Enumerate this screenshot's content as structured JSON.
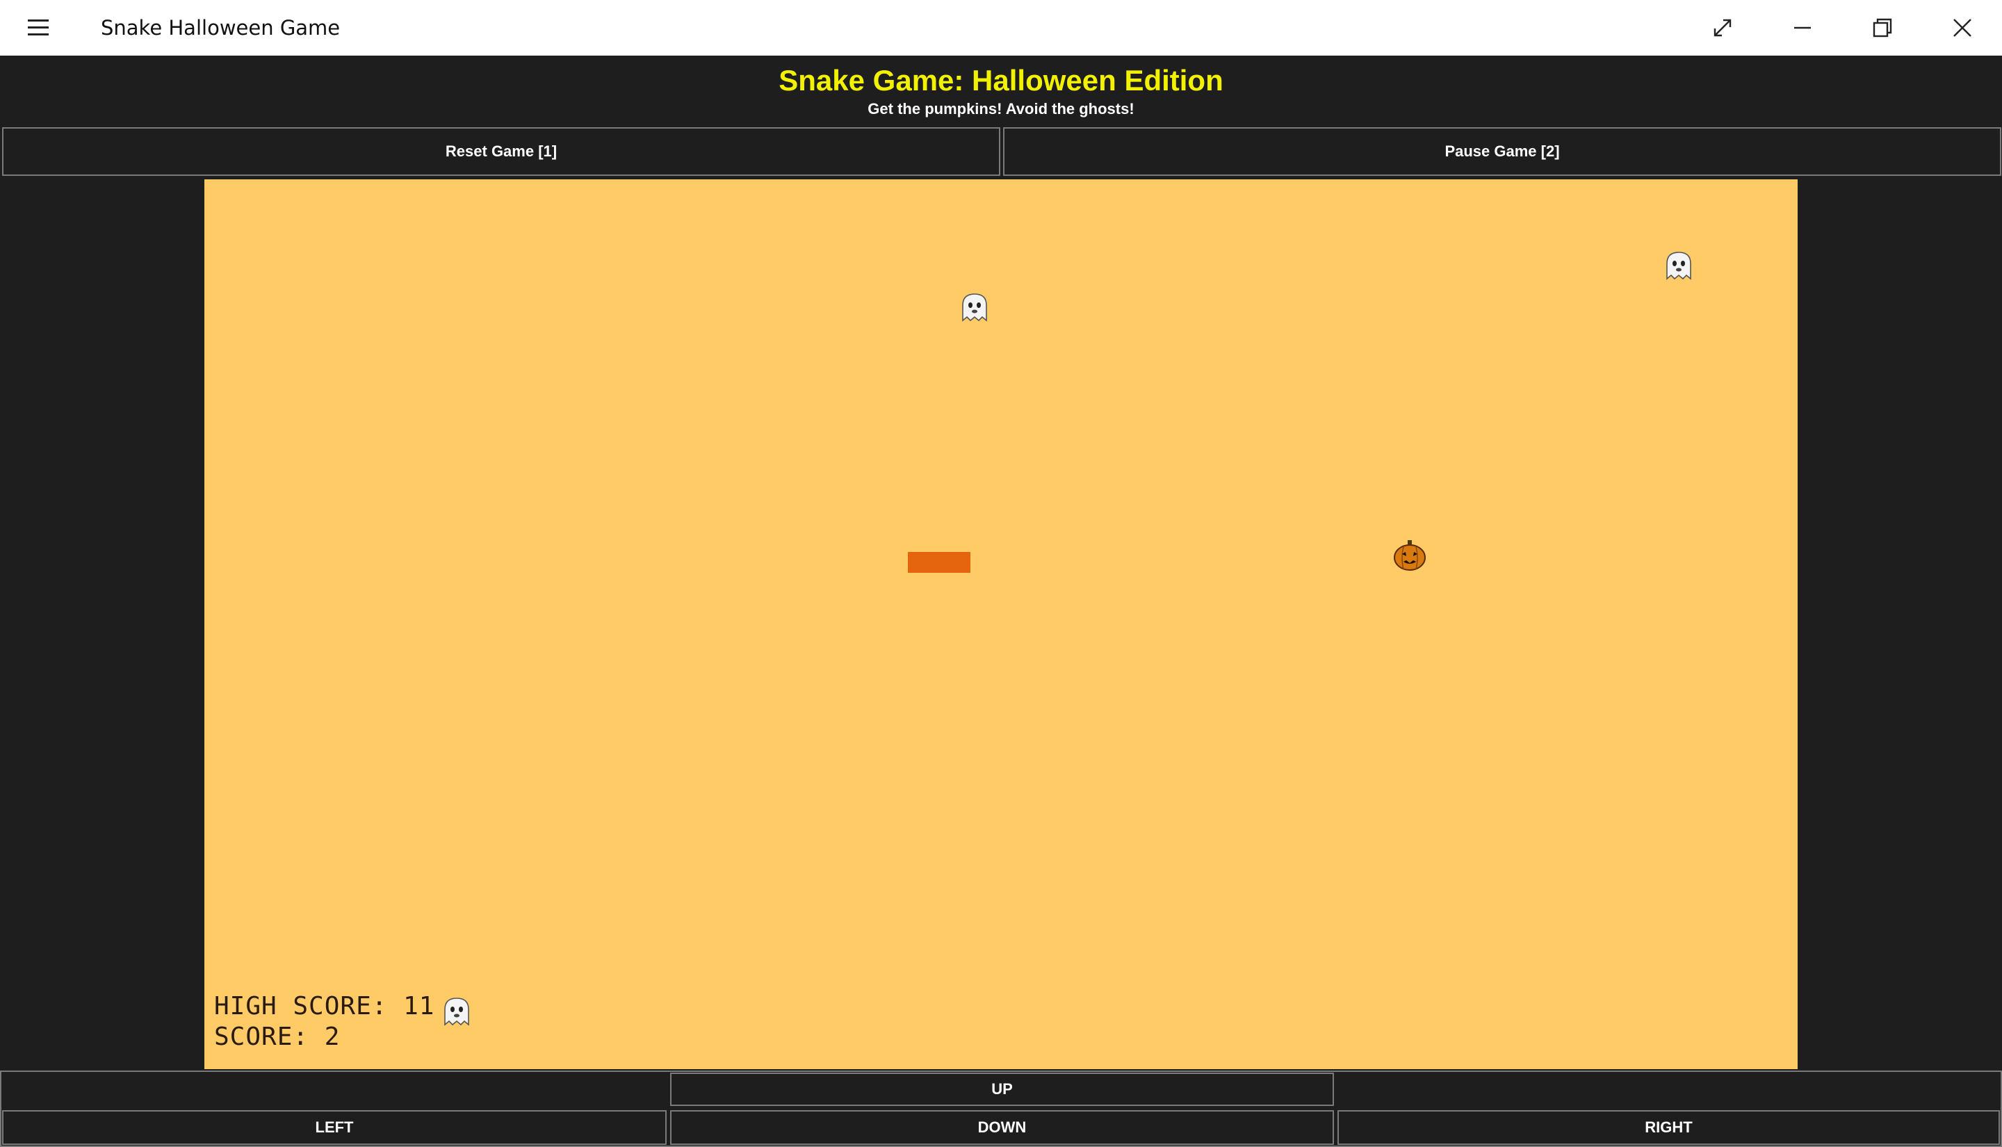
{
  "window": {
    "title": "Snake Halloween Game",
    "buttons": [
      "expand-icon",
      "minimize-icon",
      "restore-icon",
      "close-icon"
    ]
  },
  "header": {
    "title": "Snake Game: Halloween Edition",
    "subtitle": "Get the pumpkins! Avoid the ghosts!"
  },
  "controls": {
    "reset_label": "Reset Game [1]",
    "pause_label": "Pause Game [2]"
  },
  "game": {
    "board_color": "#fecb67",
    "snake_color": "#e5650f",
    "title_color": "#f2f200",
    "high_score_label": "HIGH SCORE: 11",
    "score_label": "SCORE: 2"
  },
  "dpad": {
    "up": "UP",
    "left": "LEFT",
    "down": "DOWN",
    "right": "RIGHT"
  }
}
